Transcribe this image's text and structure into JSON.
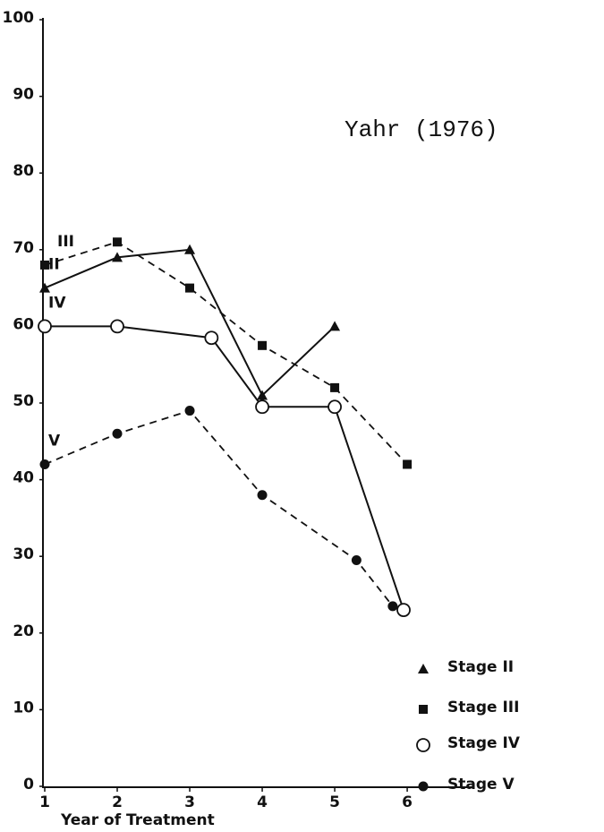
{
  "chart_data": {
    "type": "line",
    "title": "Yahr (1976)",
    "x_label": "Year of Treatment",
    "xlim": [
      1,
      6.9
    ],
    "xticks": [
      1,
      2,
      3,
      4,
      5,
      6
    ],
    "ylim": [
      0,
      100
    ],
    "yticks": [
      0,
      10,
      20,
      30,
      40,
      50,
      60,
      70,
      80,
      90,
      100
    ],
    "series": [
      {
        "name": "Stage II",
        "label": "II",
        "color": "#111111",
        "marker": "triangle",
        "dashed": false,
        "x": [
          1,
          2,
          3,
          4,
          5
        ],
        "values": [
          65,
          69,
          70,
          51,
          60
        ]
      },
      {
        "name": "Stage III",
        "label": "III",
        "color": "#111111",
        "marker": "square",
        "dashed": true,
        "x": [
          1,
          2,
          3,
          4,
          5,
          6
        ],
        "values": [
          68,
          71,
          65,
          57.5,
          52,
          42
        ]
      },
      {
        "name": "Stage IV",
        "label": "IV",
        "color": "#111111",
        "marker": "open-circle",
        "dashed": false,
        "x": [
          1,
          2,
          3.3,
          4,
          5,
          5.95
        ],
        "values": [
          60,
          60,
          58.5,
          49.5,
          49.5,
          23
        ]
      },
      {
        "name": "Stage V",
        "label": "V",
        "color": "#111111",
        "marker": "circle",
        "dashed": true,
        "x": [
          1,
          2,
          3,
          4,
          5.3,
          5.8
        ],
        "values": [
          42,
          46,
          49,
          38,
          29.5,
          23.5
        ]
      }
    ]
  }
}
